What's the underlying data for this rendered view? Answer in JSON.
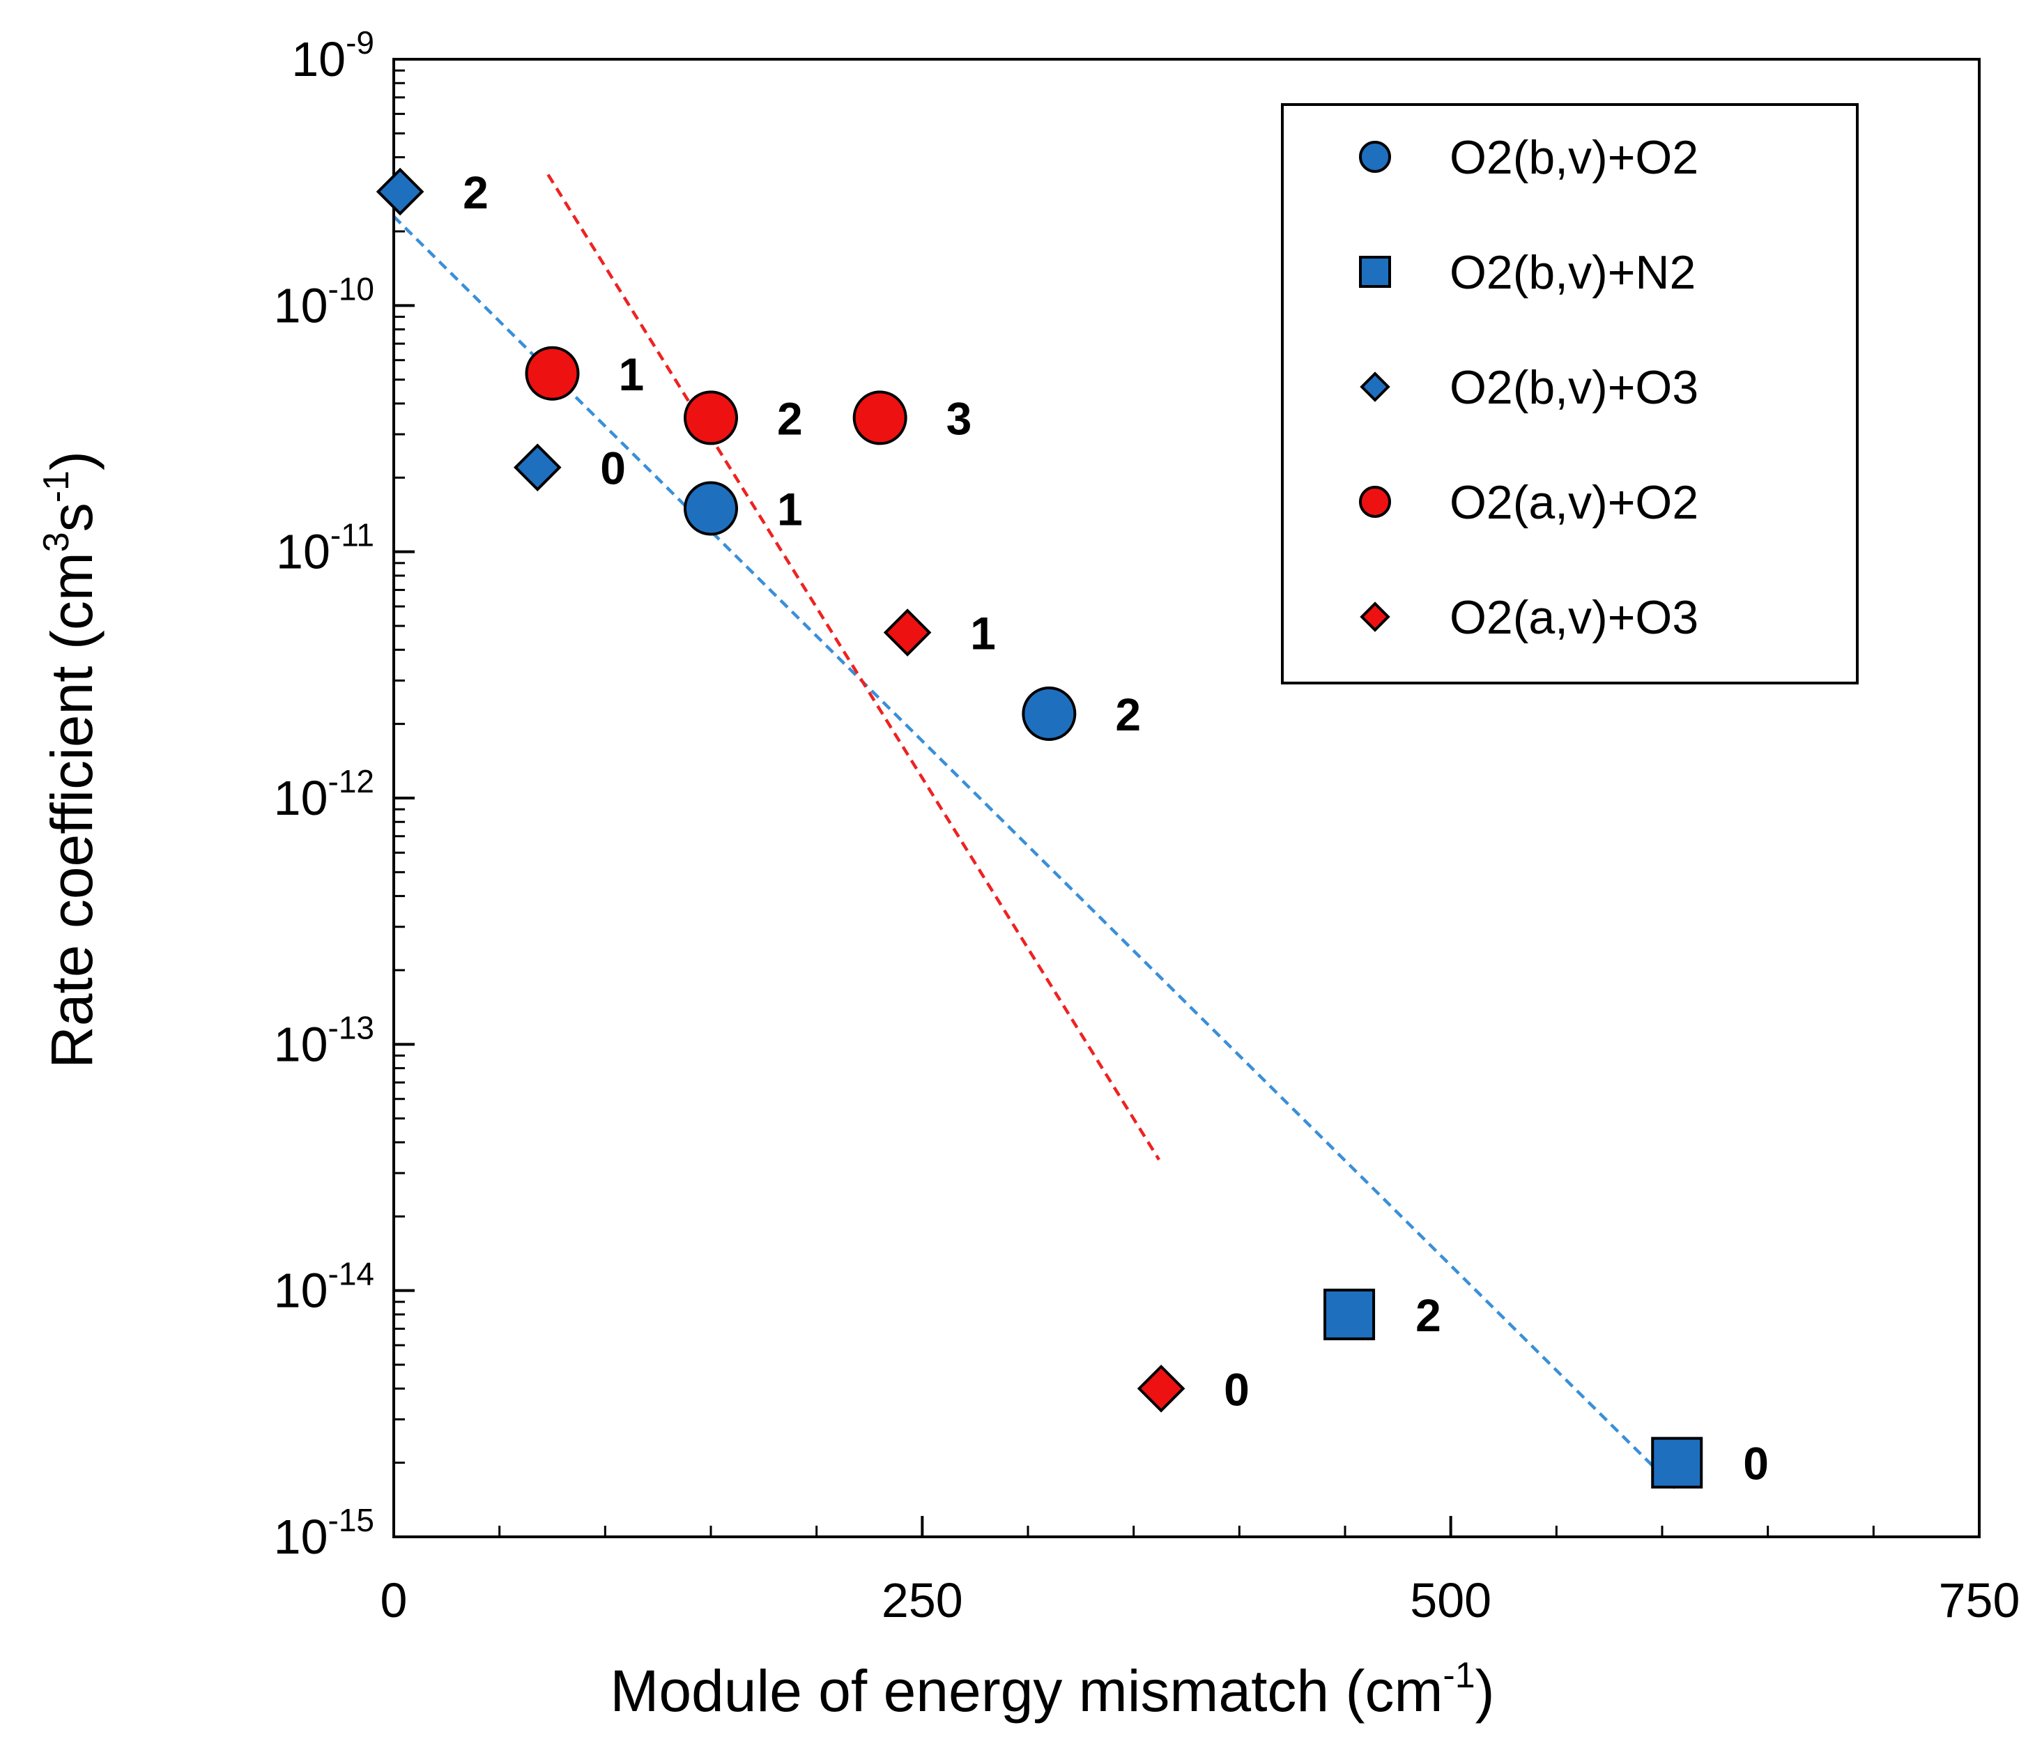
{
  "chart_data": {
    "type": "scatter",
    "title": "",
    "xlabel": "Module of energy mismatch (cm",
    "xlabel_sup": "-1",
    "xlabel_tail": ")",
    "ylabel": "Rate coefficient (cm",
    "ylabel_sup1": "3",
    "ylabel_mid": "s",
    "ylabel_sup2": "-1",
    "ylabel_tail": ")",
    "xlim": [
      0,
      750
    ],
    "ylim_log10": [
      -15,
      -9
    ],
    "x_ticks": [
      {
        "value": 0,
        "label": "0"
      },
      {
        "value": 250,
        "label": "250"
      },
      {
        "value": 500,
        "label": "500"
      },
      {
        "value": 750,
        "label": "750"
      }
    ],
    "y_ticks": [
      {
        "exp": -9,
        "base": "10",
        "sup": "-9"
      },
      {
        "exp": -10,
        "base": "10",
        "sup": "-10"
      },
      {
        "exp": -11,
        "base": "10",
        "sup": "-11"
      },
      {
        "exp": -12,
        "base": "10",
        "sup": "-12"
      },
      {
        "exp": -13,
        "base": "10",
        "sup": "-13"
      },
      {
        "exp": -14,
        "base": "10",
        "sup": "-14"
      },
      {
        "exp": -15,
        "base": "10",
        "sup": "-15"
      }
    ],
    "legend_position": "top-right",
    "colors": {
      "blue": "#1f6fbf",
      "red": "#ee1111",
      "blue_fit": "#3a8fd8",
      "red_fit": "#ee2222"
    },
    "series": [
      {
        "name": "O2(b,v)+O2",
        "marker": "circle",
        "color": "#1f6fbf",
        "points": [
          {
            "x": 150,
            "y": 1.5e-11,
            "label": "1"
          },
          {
            "x": 310,
            "y": 2.2e-12,
            "label": "2"
          }
        ]
      },
      {
        "name": "O2(b,v)+N2",
        "marker": "square",
        "color": "#1f6fbf",
        "points": [
          {
            "x": 452,
            "y": 8e-15,
            "label": "2"
          },
          {
            "x": 607,
            "y": 2e-15,
            "label": "0"
          }
        ]
      },
      {
        "name": "O2(b,v)+O3",
        "marker": "diamond",
        "color": "#1f6fbf",
        "points": [
          {
            "x": 3,
            "y": 2.9e-10,
            "label": "2"
          },
          {
            "x": 68,
            "y": 2.2e-11,
            "label": "0"
          }
        ]
      },
      {
        "name": "O2(a,v)+O2",
        "marker": "circle",
        "color": "#ee1111",
        "points": [
          {
            "x": 75,
            "y": 5.3e-11,
            "label": "1"
          },
          {
            "x": 150,
            "y": 3.5e-11,
            "label": "2"
          },
          {
            "x": 230,
            "y": 3.5e-11,
            "label": "3"
          }
        ]
      },
      {
        "name": "O2(a,v)+O3",
        "marker": "diamond",
        "color": "#ee1111",
        "points": [
          {
            "x": 243,
            "y": 4.7e-12,
            "label": "1"
          },
          {
            "x": 363,
            "y": 4e-15,
            "label": "0"
          }
        ]
      }
    ],
    "fit_lines": [
      {
        "name": "blue-fit",
        "color": "#3a8fd8",
        "x": [
          0,
          607
        ],
        "y": [
          2.3e-10,
          1.55e-15
        ]
      },
      {
        "name": "red-fit",
        "color": "#ee2222",
        "x": [
          73,
          362
        ],
        "y": [
          3.4e-10,
          3.4e-14
        ]
      }
    ]
  }
}
